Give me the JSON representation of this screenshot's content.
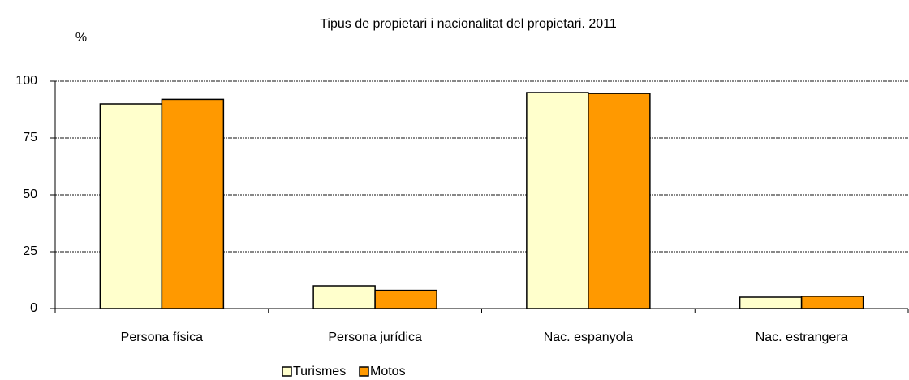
{
  "chart_data": {
    "type": "bar",
    "title": "Tipus de propietari i nacionalitat del propietari.  2011",
    "y_label": "%",
    "categories": [
      "Persona física",
      "Persona jurídica",
      "Nac. espanyola",
      "Nac. estrangera"
    ],
    "series": [
      {
        "name": "Turismes",
        "color": "#ffffcc",
        "values": [
          90,
          10,
          95,
          5
        ]
      },
      {
        "name": "Motos",
        "color": "#ff9900",
        "values": [
          92,
          8,
          94.6,
          5.4
        ]
      }
    ],
    "ylim": [
      0,
      100
    ],
    "yticks": [
      0,
      25,
      50,
      75,
      100
    ],
    "grid": true,
    "legend": "bottom"
  }
}
